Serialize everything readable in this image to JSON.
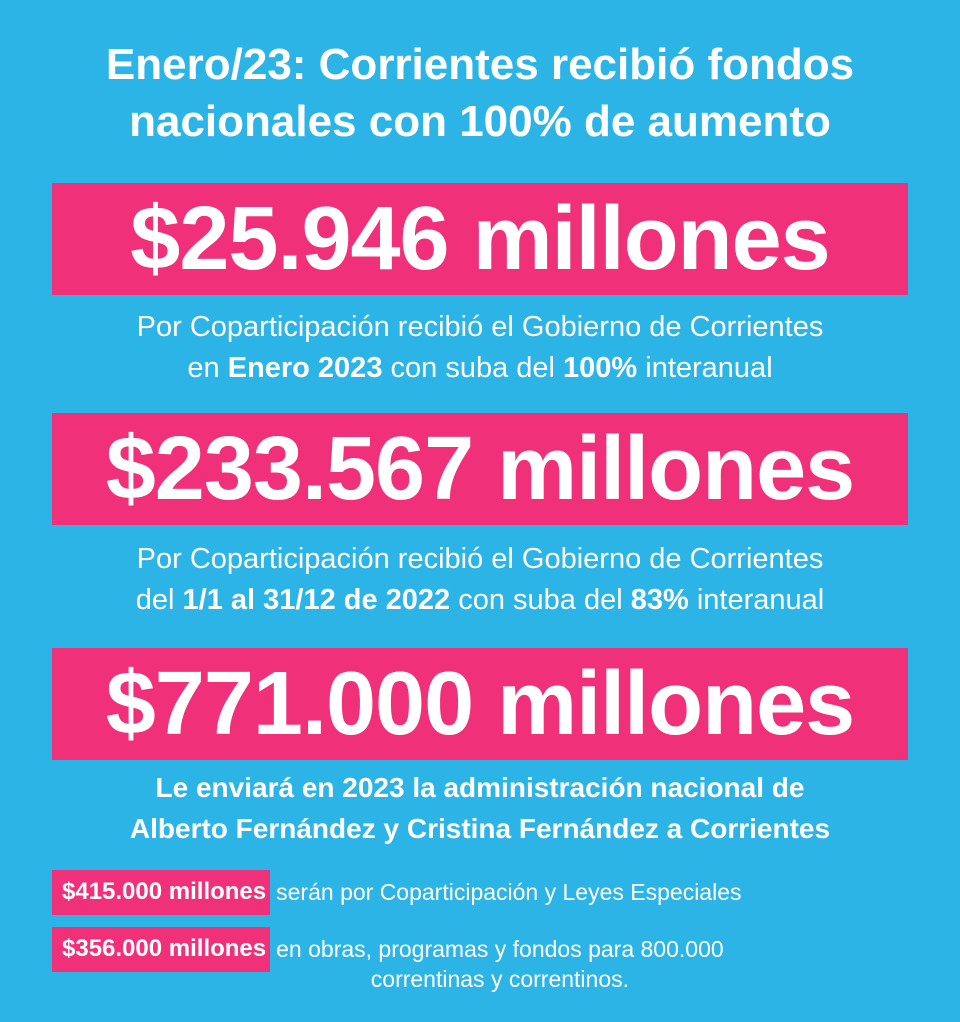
{
  "title": {
    "line1": "Enero/23: Corrientes recibió fondos",
    "line2": "nacionales con 100% de aumento"
  },
  "colors": {
    "background": "#2cb4e7",
    "highlight": "#f03078",
    "text": "#ffffff"
  },
  "block1": {
    "amount": "$25.946 millones",
    "line1": "Por Coparticipación recibió el Gobierno de Corrientes",
    "line2_pre": "en ",
    "line2_b1": "Enero 2023",
    "line2_mid": " con suba del ",
    "line2_b2": "100%",
    "line2_post": " interanual"
  },
  "block2": {
    "amount": "$233.567 millones",
    "line1": "Por Coparticipación recibió el Gobierno de Corrientes",
    "line2_pre": "del ",
    "line2_b1": "1/1 al 31/12 de 2022",
    "line2_mid": " con suba del ",
    "line2_b2": "83%",
    "line2_post": " interanual"
  },
  "block3": {
    "amount": "$771.000 millones",
    "line1": "Le enviará en 2023 la administración nacional de",
    "line2": "Alberto Fernández y Cristina Fernández a Corrientes"
  },
  "breakdown": [
    {
      "amount": "$415.000 millones",
      "text": "serán por Coparticipación y Leyes Especiales"
    },
    {
      "amount": "$356.000 millones",
      "text": "en obras, programas y fondos para 800.000",
      "text2": "correntinas y correntinos."
    }
  ]
}
